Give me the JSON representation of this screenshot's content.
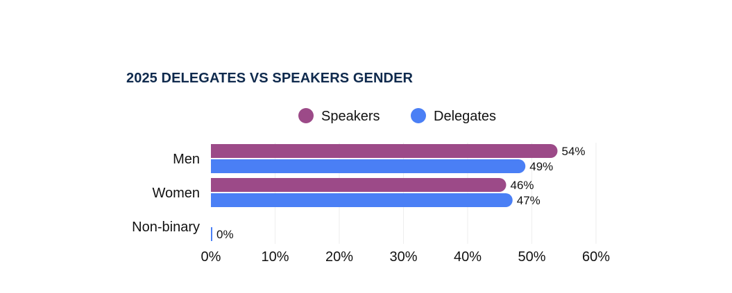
{
  "chart_data": {
    "type": "bar",
    "orientation": "horizontal",
    "title": "2025 DELEGATES VS SPEAKERS GENDER",
    "categories": [
      "Men",
      "Women",
      "Non-binary"
    ],
    "series": [
      {
        "name": "Speakers",
        "color": "#9c4a88",
        "values": [
          54,
          46,
          null
        ],
        "labels": [
          "54%",
          "46%",
          ""
        ]
      },
      {
        "name": "Delegates",
        "color": "#4a7ff5",
        "values": [
          49,
          47,
          0
        ],
        "labels": [
          "49%",
          "47%",
          "0%"
        ]
      }
    ],
    "xlim": [
      0,
      60
    ],
    "xticks": [
      0,
      10,
      20,
      30,
      40,
      50,
      60
    ],
    "xtick_labels": [
      "0%",
      "10%",
      "20%",
      "30%",
      "40%",
      "50%",
      "60%"
    ],
    "xlabel": "",
    "ylabel": "",
    "grid": true,
    "legend_position": "top"
  }
}
